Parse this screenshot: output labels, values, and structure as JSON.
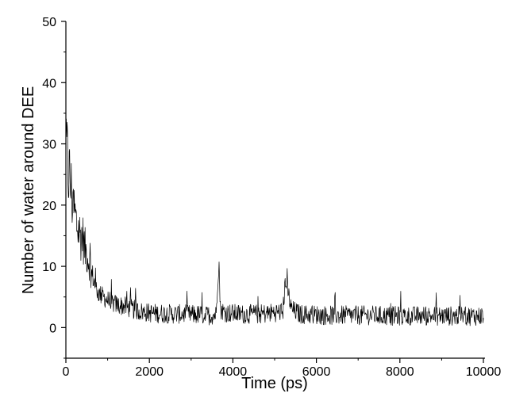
{
  "chart_data": {
    "type": "line",
    "title": "",
    "xlabel": "Time (ps)",
    "ylabel": "Number of water around DEE",
    "xlim": [
      0,
      10000
    ],
    "ylim": [
      -5,
      50
    ],
    "xticks": [
      0,
      2000,
      4000,
      6000,
      8000,
      10000
    ],
    "yticks": [
      0,
      10,
      20,
      30,
      40,
      50
    ],
    "grid": false,
    "legend": "none",
    "line_color": "#000000",
    "series": [
      {
        "x": [
          0,
          50,
          100,
          150,
          200,
          250,
          300,
          350,
          400,
          450,
          500,
          550,
          600,
          650,
          700,
          750,
          800,
          900,
          1000,
          1100,
          1200,
          1300,
          1400,
          1500,
          1600,
          1700,
          1800,
          2000,
          2200,
          2400,
          2600,
          2800,
          3000,
          3200,
          3400,
          3600,
          3660,
          3700,
          3800,
          4000,
          4200,
          4400,
          4600,
          4800,
          5000,
          5200,
          5260,
          5400,
          5600,
          5800,
          6000,
          6200,
          6400,
          6600,
          6800,
          7000,
          7200,
          7400,
          7600,
          7800,
          8000,
          8200,
          8400,
          8600,
          8800,
          9000,
          9200,
          9400,
          9600,
          9800,
          10000
        ],
        "values": [
          30,
          26,
          24,
          21,
          19,
          17,
          16,
          15,
          15,
          13,
          12,
          11,
          9,
          8,
          7,
          6,
          5.5,
          5,
          4.5,
          4,
          3.8,
          3.6,
          3.5,
          3.2,
          3,
          2.8,
          2.6,
          2.4,
          2.3,
          2.3,
          2.2,
          2.2,
          2.1,
          2.1,
          2,
          2.1,
          12,
          3,
          2.5,
          2.3,
          2.2,
          2.2,
          2.2,
          2.3,
          2.5,
          2.6,
          8,
          3,
          2.2,
          2.1,
          2.1,
          2,
          2,
          2,
          2,
          2,
          2,
          2,
          1.9,
          1.9,
          1.9,
          1.9,
          1.9,
          1.9,
          1.9,
          1.9,
          1.9,
          1.9,
          1.9,
          1.9,
          1.9
        ]
      }
    ]
  }
}
